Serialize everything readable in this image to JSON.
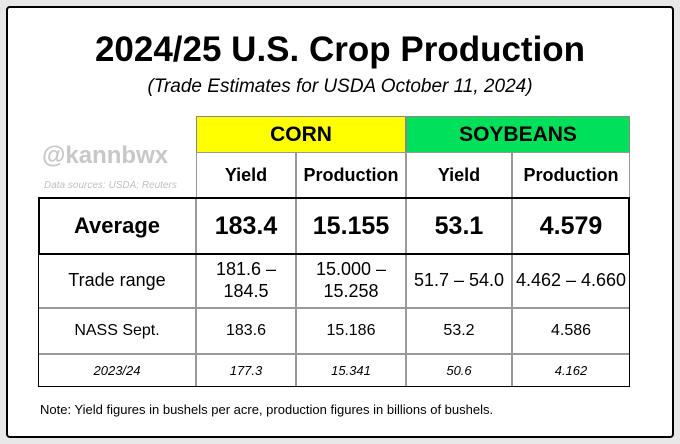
{
  "header": {
    "title": "2024/25 U.S. Crop Production",
    "subtitle": "(Trade Estimates for USDA October 11, 2024)"
  },
  "watermark": {
    "handle": "@kannbwx",
    "sources": "Data sources: USDA; Reuters"
  },
  "table": {
    "groups": [
      "CORN",
      "SOYBEANS"
    ],
    "columns": [
      "Yield",
      "Production",
      "Yield",
      "Production"
    ],
    "rows": [
      [
        "Average",
        "183.4",
        "15.155",
        "53.1",
        "4.579"
      ],
      [
        "Trade range",
        "181.6 – 184.5",
        "15.000 – 15.258",
        "51.7 – 54.0",
        "4.462 – 4.660"
      ],
      [
        "NASS Sept.",
        "183.6",
        "15.186",
        "53.2",
        "4.586"
      ],
      [
        "2023/24",
        "177.3",
        "15.341",
        "50.6",
        "4.162"
      ]
    ]
  },
  "note": "Note: Yield figures in bushels per acre, production figures in billions of bushels."
}
